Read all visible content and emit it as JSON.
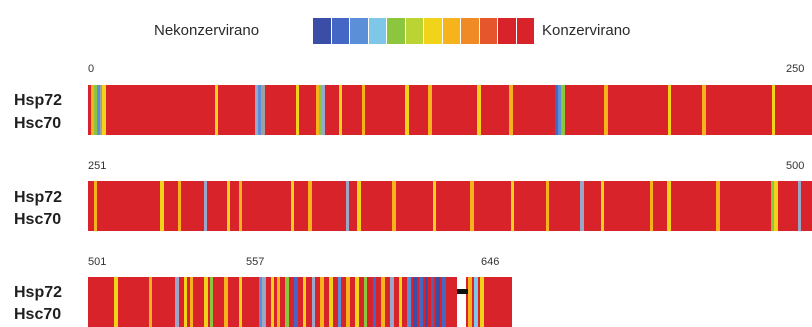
{
  "legend": {
    "low_label": "Nekonzervirano",
    "high_label": "Konzervirano",
    "scale_colors": [
      "#3a4ea8",
      "#4466c4",
      "#5b8fd8",
      "#7ec7e8",
      "#8cc63f",
      "#b9d433",
      "#f1d31a",
      "#f6b31b",
      "#f08a24",
      "#e6562c",
      "#d8232a",
      "#d8232a"
    ]
  },
  "rows": [
    {
      "proteins": [
        "Hsp72",
        "Hsc70"
      ],
      "start_label": "0",
      "end_label": "250",
      "range": [
        0,
        250
      ],
      "variable_positions": [
        {
          "pos": 1,
          "color": "#f6b31b"
        },
        {
          "pos": 2,
          "color": "#8cc63f"
        },
        {
          "pos": 3,
          "color": "#5b8fd8"
        },
        {
          "pos": 4,
          "color": "#a0a0a0"
        },
        {
          "pos": 5,
          "color": "#f1d31a"
        },
        {
          "pos": 44,
          "color": "#f1d31a"
        },
        {
          "pos": 58,
          "color": "#9aa7c9"
        },
        {
          "pos": 59,
          "color": "#5b8fd8"
        },
        {
          "pos": 60,
          "color": "#a0a0a0"
        },
        {
          "pos": 72,
          "color": "#f1d31a"
        },
        {
          "pos": 79,
          "color": "#f6b31b"
        },
        {
          "pos": 80,
          "color": "#8cc63f"
        },
        {
          "pos": 81,
          "color": "#9aa7c9"
        },
        {
          "pos": 87,
          "color": "#f1d31a"
        },
        {
          "pos": 95,
          "color": "#f6b31b"
        },
        {
          "pos": 110,
          "color": "#f1d31a"
        },
        {
          "pos": 118,
          "color": "#f6b31b"
        },
        {
          "pos": 135,
          "color": "#f1d31a"
        },
        {
          "pos": 146,
          "color": "#f6b31b"
        },
        {
          "pos": 162,
          "color": "#4466c4"
        },
        {
          "pos": 163,
          "color": "#5b8fd8"
        },
        {
          "pos": 164,
          "color": "#8cc63f"
        },
        {
          "pos": 179,
          "color": "#f6b31b"
        },
        {
          "pos": 201,
          "color": "#f1d31a"
        },
        {
          "pos": 213,
          "color": "#f6b31b"
        },
        {
          "pos": 237,
          "color": "#f1d31a"
        }
      ]
    },
    {
      "proteins": [
        "Hsp72",
        "Hsc70"
      ],
      "start_label": "251",
      "end_label": "500",
      "range": [
        251,
        500
      ],
      "variable_positions": [
        {
          "pos": 253,
          "color": "#f6b31b"
        },
        {
          "pos": 276,
          "color": "#f1d31a"
        },
        {
          "pos": 282,
          "color": "#f6b31b"
        },
        {
          "pos": 291,
          "color": "#9aa7c9"
        },
        {
          "pos": 299,
          "color": "#f1d31a"
        },
        {
          "pos": 303,
          "color": "#f6b31b"
        },
        {
          "pos": 321,
          "color": "#f1d31a"
        },
        {
          "pos": 327,
          "color": "#f6b31b"
        },
        {
          "pos": 340,
          "color": "#9aa7c9"
        },
        {
          "pos": 344,
          "color": "#f1d31a"
        },
        {
          "pos": 356,
          "color": "#f6b31b"
        },
        {
          "pos": 370,
          "color": "#f1d31a"
        },
        {
          "pos": 383,
          "color": "#f6b31b"
        },
        {
          "pos": 397,
          "color": "#f1d31a"
        },
        {
          "pos": 409,
          "color": "#f6b31b"
        },
        {
          "pos": 421,
          "color": "#9aa7c9"
        },
        {
          "pos": 428,
          "color": "#f1d31a"
        },
        {
          "pos": 445,
          "color": "#f6b31b"
        },
        {
          "pos": 451,
          "color": "#f1d31a"
        },
        {
          "pos": 468,
          "color": "#f6b31b"
        },
        {
          "pos": 487,
          "color": "#8cc63f"
        },
        {
          "pos": 488,
          "color": "#f1d31a"
        },
        {
          "pos": 496,
          "color": "#9aa7c9"
        }
      ]
    },
    {
      "proteins": [
        "Hsp72",
        "Hsc70"
      ],
      "start_label": "501",
      "mid_label": "557",
      "end_label": "646",
      "range": [
        501,
        646
      ],
      "variable_positions": [
        {
          "pos": 510,
          "color": "#f1d31a"
        },
        {
          "pos": 522,
          "color": "#f6b31b"
        },
        {
          "pos": 531,
          "color": "#9aa7c9"
        },
        {
          "pos": 534,
          "color": "#f1d31a"
        },
        {
          "pos": 536,
          "color": "#f6b31b"
        },
        {
          "pos": 541,
          "color": "#f1d31a"
        },
        {
          "pos": 543,
          "color": "#8cc63f"
        },
        {
          "pos": 548,
          "color": "#f6b31b"
        },
        {
          "pos": 553,
          "color": "#f1d31a"
        },
        {
          "pos": 560,
          "color": "#5b8fd8"
        },
        {
          "pos": 561,
          "color": "#9aa7c9"
        },
        {
          "pos": 564,
          "color": "#f1d31a"
        },
        {
          "pos": 566,
          "color": "#f6b31b"
        },
        {
          "pos": 569,
          "color": "#8cc63f"
        },
        {
          "pos": 572,
          "color": "#4466c4"
        },
        {
          "pos": 575,
          "color": "#f1d31a"
        },
        {
          "pos": 578,
          "color": "#9aa7c9"
        },
        {
          "pos": 581,
          "color": "#f6b31b"
        },
        {
          "pos": 584,
          "color": "#f1d31a"
        },
        {
          "pos": 587,
          "color": "#5b8fd8"
        },
        {
          "pos": 590,
          "color": "#f6b31b"
        },
        {
          "pos": 593,
          "color": "#f1d31a"
        },
        {
          "pos": 596,
          "color": "#8cc63f"
        },
        {
          "pos": 599,
          "color": "#4466c4"
        },
        {
          "pos": 602,
          "color": "#f6b31b"
        },
        {
          "pos": 605,
          "color": "#9aa7c9"
        },
        {
          "pos": 608,
          "color": "#f1d31a"
        },
        {
          "pos": 611,
          "color": "#5b8fd8"
        },
        {
          "pos": 613,
          "color": "#3a4ea8"
        },
        {
          "pos": 615,
          "color": "#4466c4"
        },
        {
          "pos": 617,
          "color": "#3a4ea8"
        },
        {
          "pos": 619,
          "color": "#5b5ea8"
        },
        {
          "pos": 621,
          "color": "#3a4ea8"
        },
        {
          "pos": 623,
          "color": "#4466c4"
        },
        {
          "pos": 628,
          "color": "#ffffff"
        },
        {
          "pos": 629,
          "color": "#ffffff"
        },
        {
          "pos": 630,
          "color": "#ffffff"
        },
        {
          "pos": 632,
          "color": "#f6b31b"
        },
        {
          "pos": 634,
          "color": "#7ec7e8"
        },
        {
          "pos": 636,
          "color": "#f1d31a"
        }
      ],
      "gap_positions": [
        628,
        629,
        630,
        631
      ]
    }
  ]
}
